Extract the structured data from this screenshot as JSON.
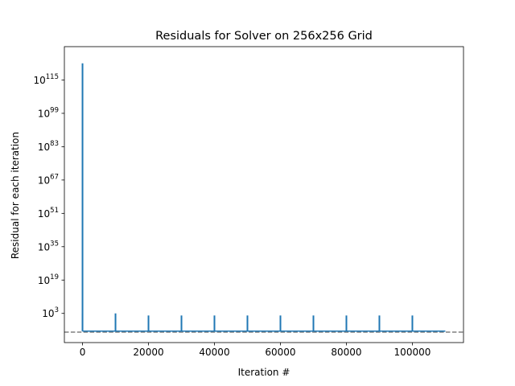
{
  "chart_data": {
    "type": "line",
    "title": "Residuals for Solver on 256x256 Grid",
    "xlabel": "Iteration #",
    "ylabel": "Residual for each iteration",
    "yscale": "log",
    "xlim": [
      -5500,
      115500
    ],
    "ylim_log10": [
      -11,
      131
    ],
    "x_ticks": [
      {
        "value": 0,
        "label": "0"
      },
      {
        "value": 20000,
        "label": "20000"
      },
      {
        "value": 40000,
        "label": "40000"
      },
      {
        "value": 60000,
        "label": "60000"
      },
      {
        "value": 80000,
        "label": "80000"
      },
      {
        "value": 100000,
        "label": "100000"
      }
    ],
    "y_ticks": [
      {
        "exp": 3,
        "base": "10",
        "sup": "3"
      },
      {
        "exp": 19,
        "base": "10",
        "sup": "19"
      },
      {
        "exp": 35,
        "base": "10",
        "sup": "35"
      },
      {
        "exp": 51,
        "base": "10",
        "sup": "51"
      },
      {
        "exp": 67,
        "base": "10",
        "sup": "67"
      },
      {
        "exp": 83,
        "base": "10",
        "sup": "83"
      },
      {
        "exp": 99,
        "base": "10",
        "sup": "99"
      },
      {
        "exp": 115,
        "base": "10",
        "sup": "115"
      }
    ],
    "grid": false,
    "series": [
      {
        "color": "#1f77b4",
        "baseline_log10": -5.5,
        "x_end": 110000,
        "spikes": [
          {
            "x": 0,
            "log10_value": 123,
            "log10_low": 3
          },
          {
            "x": 10000,
            "log10_value": 3
          },
          {
            "x": 20000,
            "log10_value": 2
          },
          {
            "x": 30000,
            "log10_value": 2
          },
          {
            "x": 40000,
            "log10_value": 2
          },
          {
            "x": 50000,
            "log10_value": 2
          },
          {
            "x": 60000,
            "log10_value": 2
          },
          {
            "x": 70000,
            "log10_value": 2
          },
          {
            "x": 80000,
            "log10_value": 2
          },
          {
            "x": 90000,
            "log10_value": 2
          },
          {
            "x": 100000,
            "log10_value": 2
          }
        ]
      }
    ],
    "reference_line": {
      "log10_value": -6,
      "color": "#808080",
      "style": "dashed"
    }
  }
}
